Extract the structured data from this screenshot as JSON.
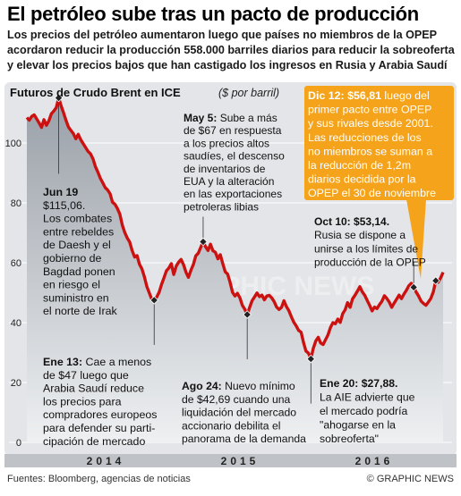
{
  "header": {
    "title": "El petróleo sube tras un pacto de producción",
    "subtitle_lines": [
      "Los precios del petróleo aumentaron luego que países no miembros de la OPEP",
      "acordaron reducir la producción 558.000 barriles diarios para reducir la sobreoferta",
      "y elevar los precios bajos que han castigado los ingresos en Rusia y Arabia Saudí"
    ]
  },
  "chart_data": {
    "type": "area",
    "title": "Futuros de Crudo Brent en ICE",
    "unit_label": "($ por barril)",
    "ylim": [
      0,
      120
    ],
    "yticks": [
      0,
      20,
      40,
      60,
      80,
      100
    ],
    "year_labels": [
      "2014",
      "2015",
      "2016"
    ],
    "series": [
      {
        "values": [
          108.5,
          107.6,
          108.9,
          109.4,
          108.1,
          106.7,
          105.2,
          107.8,
          105.9,
          107.4,
          109.8,
          110.7,
          111.8,
          115.06,
          112.4,
          110.1,
          107.5,
          105.3,
          104.2,
          103.1,
          101.4,
          102.9,
          101.1,
          99.8,
          98.5,
          97.2,
          96.4,
          94.7,
          92.1,
          90.3,
          88.2,
          86.7,
          85.1,
          84.3,
          83.0,
          80.2,
          79.5,
          78.1,
          76.2,
          72.5,
          70.1,
          68.3,
          66.9,
          64.1,
          61.9,
          62.4,
          59.5,
          57.9,
          55.3,
          52.1,
          49.9,
          47.8,
          47.5,
          48.5,
          50.1,
          52.7,
          55.0,
          57.3,
          58.2,
          59.7,
          56.1,
          58.9,
          60.2,
          61.1,
          59.3,
          56.8,
          55.1,
          57.5,
          59.4,
          62.3,
          63.2,
          65.1,
          67.0,
          65.3,
          64.1,
          66.2,
          64.0,
          63.5,
          61.3,
          62.7,
          59.8,
          57.0,
          56.2,
          53.5,
          50.1,
          48.9,
          49.8,
          48.3,
          45.8,
          44.5,
          42.69,
          45.1,
          47.3,
          48.6,
          49.9,
          48.7,
          49.2,
          47.6,
          48.9,
          49.1,
          48.3,
          47.0,
          45.2,
          44.4,
          45.1,
          47.3,
          45.4,
          44.0,
          42.0,
          40.2,
          38.9,
          37.4,
          36.8,
          33.3,
          30.5,
          29.8,
          27.88,
          31.4,
          33.9,
          35.1,
          33.2,
          32.7,
          34.3,
          35.9,
          38.4,
          40.0,
          39.6,
          41.2,
          40.1,
          43.0,
          44.3,
          46.7,
          45.1,
          47.9,
          49.1,
          50.5,
          52.0,
          50.3,
          49.1,
          47.4,
          45.8,
          43.9,
          45.2,
          44.7,
          46.0,
          47.1,
          49.0,
          48.1,
          46.9,
          45.1,
          46.5,
          47.8,
          49.2,
          48.0,
          49.5,
          50.8,
          52.3,
          53.14,
          51.8,
          50.2,
          48.9,
          47.2,
          46.4,
          45.8,
          46.9,
          48.1,
          50.3,
          54.0,
          53.5,
          55.0,
          56.81
        ]
      }
    ],
    "annotations": [
      {
        "idx": 13,
        "bold": "Jun 19",
        "lines": [
          "$115,06.",
          "Los combates",
          "entre rebeldes",
          "de Daesh y el",
          "gobierno de",
          "Bagdad ponen",
          "en riesgo el",
          "suministro en",
          "el norte de Irak"
        ]
      },
      {
        "idx": 52,
        "bold": "Ene 13:",
        "lines": [
          "Cae a menos",
          "de $47 luego que",
          "Arabia Saudí reduce",
          "los precios para",
          "compradores europeos",
          "para defender su parti-",
          "cipación de mercado"
        ]
      },
      {
        "idx": 72,
        "bold": "May 5:",
        "lines": [
          "Sube a más",
          "de $67 en respuesta",
          "a los precios altos",
          "saudíes, el descenso",
          "de inventarios de",
          "EUA y la alteración",
          "en las exportaciones",
          "petroleras libias"
        ]
      },
      {
        "idx": 90,
        "bold": "Ago 24:",
        "lines": [
          "Nuevo mínimo",
          "de $42,69 cuando una",
          "liquidación del mercado",
          "accionario debilita el",
          "panorama de la demanda"
        ]
      },
      {
        "idx": 116,
        "bold": "Ene 20: $27,88.",
        "lines": [
          "La AIE advierte que",
          "el mercado podría",
          "\"ahogarse en la",
          "sobreoferta\""
        ]
      },
      {
        "idx": 158,
        "bold": "Oct 10: $53,14.",
        "lines": [
          "Rusia se dispone a",
          "unirse a los límites de",
          "producción de la OPEP"
        ]
      },
      {
        "idx": 167,
        "bold": "Dic 12: $56,81",
        "lines": [
          "luego del",
          "primer pacto entre OPEP",
          "y sus rivales desde 2001.",
          "Las reducciones de los",
          "no miembros se suman a",
          "la reducción de 1,2m",
          "diarios decidida por la",
          "OPEP el 30 de noviembre"
        ]
      }
    ],
    "colors": {
      "line": "#cc1111",
      "fill_top": "#9aa0a8",
      "fill_bottom": "#eef0f2",
      "background": "#e3e5e8",
      "callout": "#f4a31b",
      "year_band": "#bfc2c6"
    }
  },
  "watermark": "GRAPHIC NEWS",
  "footer": {
    "source": "Fuentes: Bloomberg, agencias de noticias",
    "credit": "© GRAPHIC NEWS"
  }
}
